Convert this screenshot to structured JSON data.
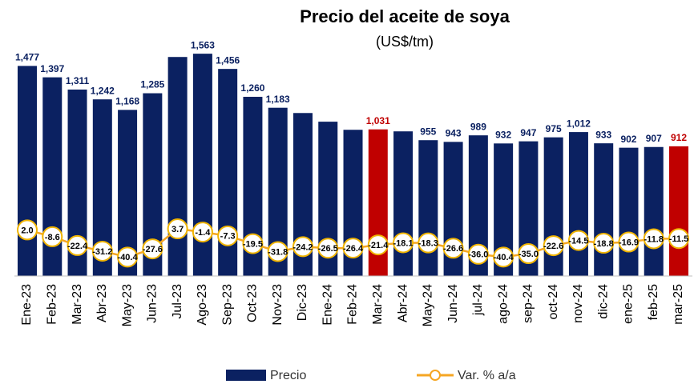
{
  "chart_data": {
    "type": "bar",
    "title": "Precio del aceite de soya",
    "subtitle": "(US$/tm)",
    "categories": [
      "Ene-23",
      "Feb-23",
      "Mar-23",
      "Abr-23",
      "May-23",
      "Jun-23",
      "Jul-23",
      "Ago-23",
      "Sep-23",
      "Oct-23",
      "Nov-23",
      "Dic-23",
      "Ene-24",
      "Feb-24",
      "Mar-24",
      "Abr-24",
      "May-24",
      "Jun-24",
      "jul-24",
      "ago-24",
      "sep-24",
      "oct-24",
      "nov-24",
      "dic-24",
      "ene-25",
      "feb-25",
      "mar-25"
    ],
    "ylim": [
      0,
      1800
    ],
    "y2lim": [
      -70,
      330
    ],
    "legend": "bottom",
    "series": [
      {
        "name": "Precio",
        "color": "#0b2161",
        "colors": [
          "#0b2161",
          "#0b2161",
          "#0b2161",
          "#0b2161",
          "#0b2161",
          "#0b2161",
          "#0b2161",
          "#0b2161",
          "#0b2161",
          "#0b2161",
          "#0b2161",
          "#0b2161",
          "#0b2161",
          "#0b2161",
          "#c00000",
          "#0b2161",
          "#0b2161",
          "#0b2161",
          "#0b2161",
          "#0b2161",
          "#0b2161",
          "#0b2161",
          "#0b2161",
          "#0b2161",
          "#0b2161",
          "#0b2161",
          "#c00000"
        ],
        "values": [
          1477,
          1397,
          1311,
          1242,
          1168,
          1285,
          1540,
          1563,
          1456,
          1260,
          1183,
          1146,
          1085,
          1028,
          1031,
          1017,
          955,
          943,
          989,
          932,
          947,
          975,
          1012,
          933,
          902,
          907,
          912
        ],
        "value_labels": [
          "1,477",
          "1,397",
          "1,311",
          "1,242",
          "1,168",
          "1,285",
          null,
          "1,563",
          "1,456",
          "1,260",
          "1,183",
          null,
          null,
          null,
          "1,031",
          null,
          "955",
          "943",
          "989",
          "932",
          "947",
          "975",
          "1,012",
          "933",
          "902",
          "907",
          "912"
        ]
      },
      {
        "name": "Var. % a/a",
        "color": "#f5a623",
        "axis": "y2",
        "values": [
          2.0,
          -8.6,
          -22.4,
          -31.2,
          -40.4,
          -27.6,
          3.7,
          -1.4,
          -7.3,
          -19.5,
          -31.8,
          -24.2,
          -26.5,
          -26.4,
          -21.4,
          -18.1,
          -18.3,
          -26.6,
          -36.0,
          -40.4,
          -35.0,
          -22.6,
          -14.5,
          -18.8,
          -16.9,
          -11.8,
          -11.5
        ],
        "value_labels": [
          "2.0",
          "-8.6",
          "-22.4",
          "-31.2",
          "-40.4",
          "-27.6",
          "3.7",
          "-1.4",
          "-7.3",
          "-19.5",
          "-31.8",
          "-24.2",
          "-26.5",
          "-26.4",
          "-21.4",
          "-18.1",
          "-18.3",
          "-26.6",
          "-36.0",
          "-40.4",
          "-35.0",
          "-22.6",
          "-14.5",
          "-18.8",
          "-16.9",
          "-11.8",
          "-11.5"
        ]
      }
    ]
  }
}
